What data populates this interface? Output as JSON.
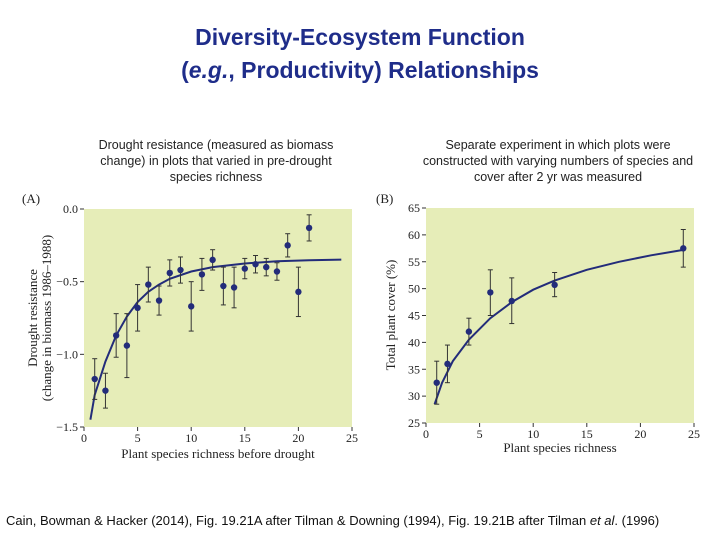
{
  "slide": {
    "title_line1": "Diversity-Ecosystem Function",
    "title_line2_italic": "e.g.",
    "title_line2_rest": ", Productivity) Relationships",
    "title_line2_open": "(",
    "caption_a": "Drought resistance (measured as biomass change) in plots that varied in pre-drought species richness",
    "caption_b": "Separate experiment in which plots were constructed with varying numbers of species and cover after 2 yr was measured",
    "citation_pre": "Cain, Bowman & Hacker (2014), Fig. 19.21A  after Tilman & Downing (1994), Fig. 19.21B after Tilman ",
    "citation_italic": "et al",
    "citation_post": ". (1996)"
  },
  "chart_data": [
    {
      "type": "scatter",
      "panel_label": "(A)",
      "xlabel": "Plant species richness before drought",
      "ylabel_line1": "Drought resistance",
      "ylabel_line2": "(change in biomass 1986–1988)",
      "xlim": [
        0,
        25
      ],
      "ylim": [
        -1.5,
        0.0
      ],
      "xticks": [
        "0",
        "5",
        "10",
        "15",
        "20",
        "25"
      ],
      "yticks": [
        "0.0",
        "−0.5",
        "−1.0",
        "−1.5"
      ],
      "background": "#e6edb8",
      "point_color": "#232c7a",
      "points": [
        {
          "x": 1,
          "y": -1.17,
          "lo": -1.31,
          "hi": -1.03
        },
        {
          "x": 2,
          "y": -1.25,
          "lo": -1.37,
          "hi": -1.13
        },
        {
          "x": 3,
          "y": -0.87,
          "lo": -1.02,
          "hi": -0.72
        },
        {
          "x": 4,
          "y": -0.94,
          "lo": -1.16,
          "hi": -0.72
        },
        {
          "x": 5,
          "y": -0.68,
          "lo": -0.84,
          "hi": -0.52
        },
        {
          "x": 6,
          "y": -0.52,
          "lo": -0.64,
          "hi": -0.4
        },
        {
          "x": 7,
          "y": -0.63,
          "lo": -0.73,
          "hi": -0.53
        },
        {
          "x": 8,
          "y": -0.44,
          "lo": -0.53,
          "hi": -0.35
        },
        {
          "x": 9,
          "y": -0.42,
          "lo": -0.51,
          "hi": -0.33
        },
        {
          "x": 10,
          "y": -0.67,
          "lo": -0.84,
          "hi": -0.5
        },
        {
          "x": 11,
          "y": -0.45,
          "lo": -0.56,
          "hi": -0.34
        },
        {
          "x": 12,
          "y": -0.35,
          "lo": -0.42,
          "hi": -0.28
        },
        {
          "x": 13,
          "y": -0.53,
          "lo": -0.66,
          "hi": -0.4
        },
        {
          "x": 14,
          "y": -0.54,
          "lo": -0.68,
          "hi": -0.4
        },
        {
          "x": 15,
          "y": -0.41,
          "lo": -0.48,
          "hi": -0.34
        },
        {
          "x": 16,
          "y": -0.38,
          "lo": -0.44,
          "hi": -0.32
        },
        {
          "x": 17,
          "y": -0.4,
          "lo": -0.46,
          "hi": -0.34
        },
        {
          "x": 18,
          "y": -0.43,
          "lo": -0.49,
          "hi": -0.37
        },
        {
          "x": 19,
          "y": -0.25,
          "lo": -0.33,
          "hi": -0.17
        },
        {
          "x": 20,
          "y": -0.57,
          "lo": -0.74,
          "hi": -0.4
        },
        {
          "x": 21,
          "y": -0.13,
          "lo": -0.22,
          "hi": -0.04
        }
      ],
      "fit_curve": [
        [
          0.6,
          -1.45
        ],
        [
          1,
          -1.28
        ],
        [
          2,
          -1.05
        ],
        [
          3,
          -0.87
        ],
        [
          4,
          -0.74
        ],
        [
          5,
          -0.64
        ],
        [
          6,
          -0.57
        ],
        [
          7,
          -0.52
        ],
        [
          8,
          -0.48
        ],
        [
          10,
          -0.43
        ],
        [
          12,
          -0.4
        ],
        [
          15,
          -0.375
        ],
        [
          18,
          -0.36
        ],
        [
          21,
          -0.352
        ],
        [
          24,
          -0.348
        ]
      ]
    },
    {
      "type": "scatter",
      "panel_label": "(B)",
      "xlabel": "Plant species richness",
      "ylabel": "Total plant cover (%)",
      "xlim": [
        0,
        25
      ],
      "ylim": [
        25,
        65
      ],
      "xticks": [
        "0",
        "5",
        "10",
        "15",
        "20",
        "25"
      ],
      "yticks": [
        "25",
        "30",
        "35",
        "40",
        "45",
        "50",
        "55",
        "60",
        "65"
      ],
      "background": "#e6edb8",
      "point_color": "#232c7a",
      "points": [
        {
          "x": 1,
          "y": 32.5,
          "lo": 28.5,
          "hi": 36.5
        },
        {
          "x": 2,
          "y": 36,
          "lo": 32.5,
          "hi": 39.5
        },
        {
          "x": 4,
          "y": 42,
          "lo": 39.5,
          "hi": 44.5
        },
        {
          "x": 6,
          "y": 49.3,
          "lo": 45.0,
          "hi": 53.5
        },
        {
          "x": 8,
          "y": 47.7,
          "lo": 43.5,
          "hi": 52.0
        },
        {
          "x": 12,
          "y": 50.7,
          "lo": 48.5,
          "hi": 53.0
        },
        {
          "x": 24,
          "y": 57.5,
          "lo": 54.0,
          "hi": 61.0
        }
      ],
      "fit_curve": [
        [
          0.8,
          28.5
        ],
        [
          1.5,
          32.5
        ],
        [
          2.5,
          36.5
        ],
        [
          4,
          40.5
        ],
        [
          6,
          44.5
        ],
        [
          8,
          47.5
        ],
        [
          10,
          49.8
        ],
        [
          12,
          51.5
        ],
        [
          15,
          53.5
        ],
        [
          18,
          55
        ],
        [
          21,
          56.2
        ],
        [
          24,
          57.2
        ]
      ]
    }
  ]
}
